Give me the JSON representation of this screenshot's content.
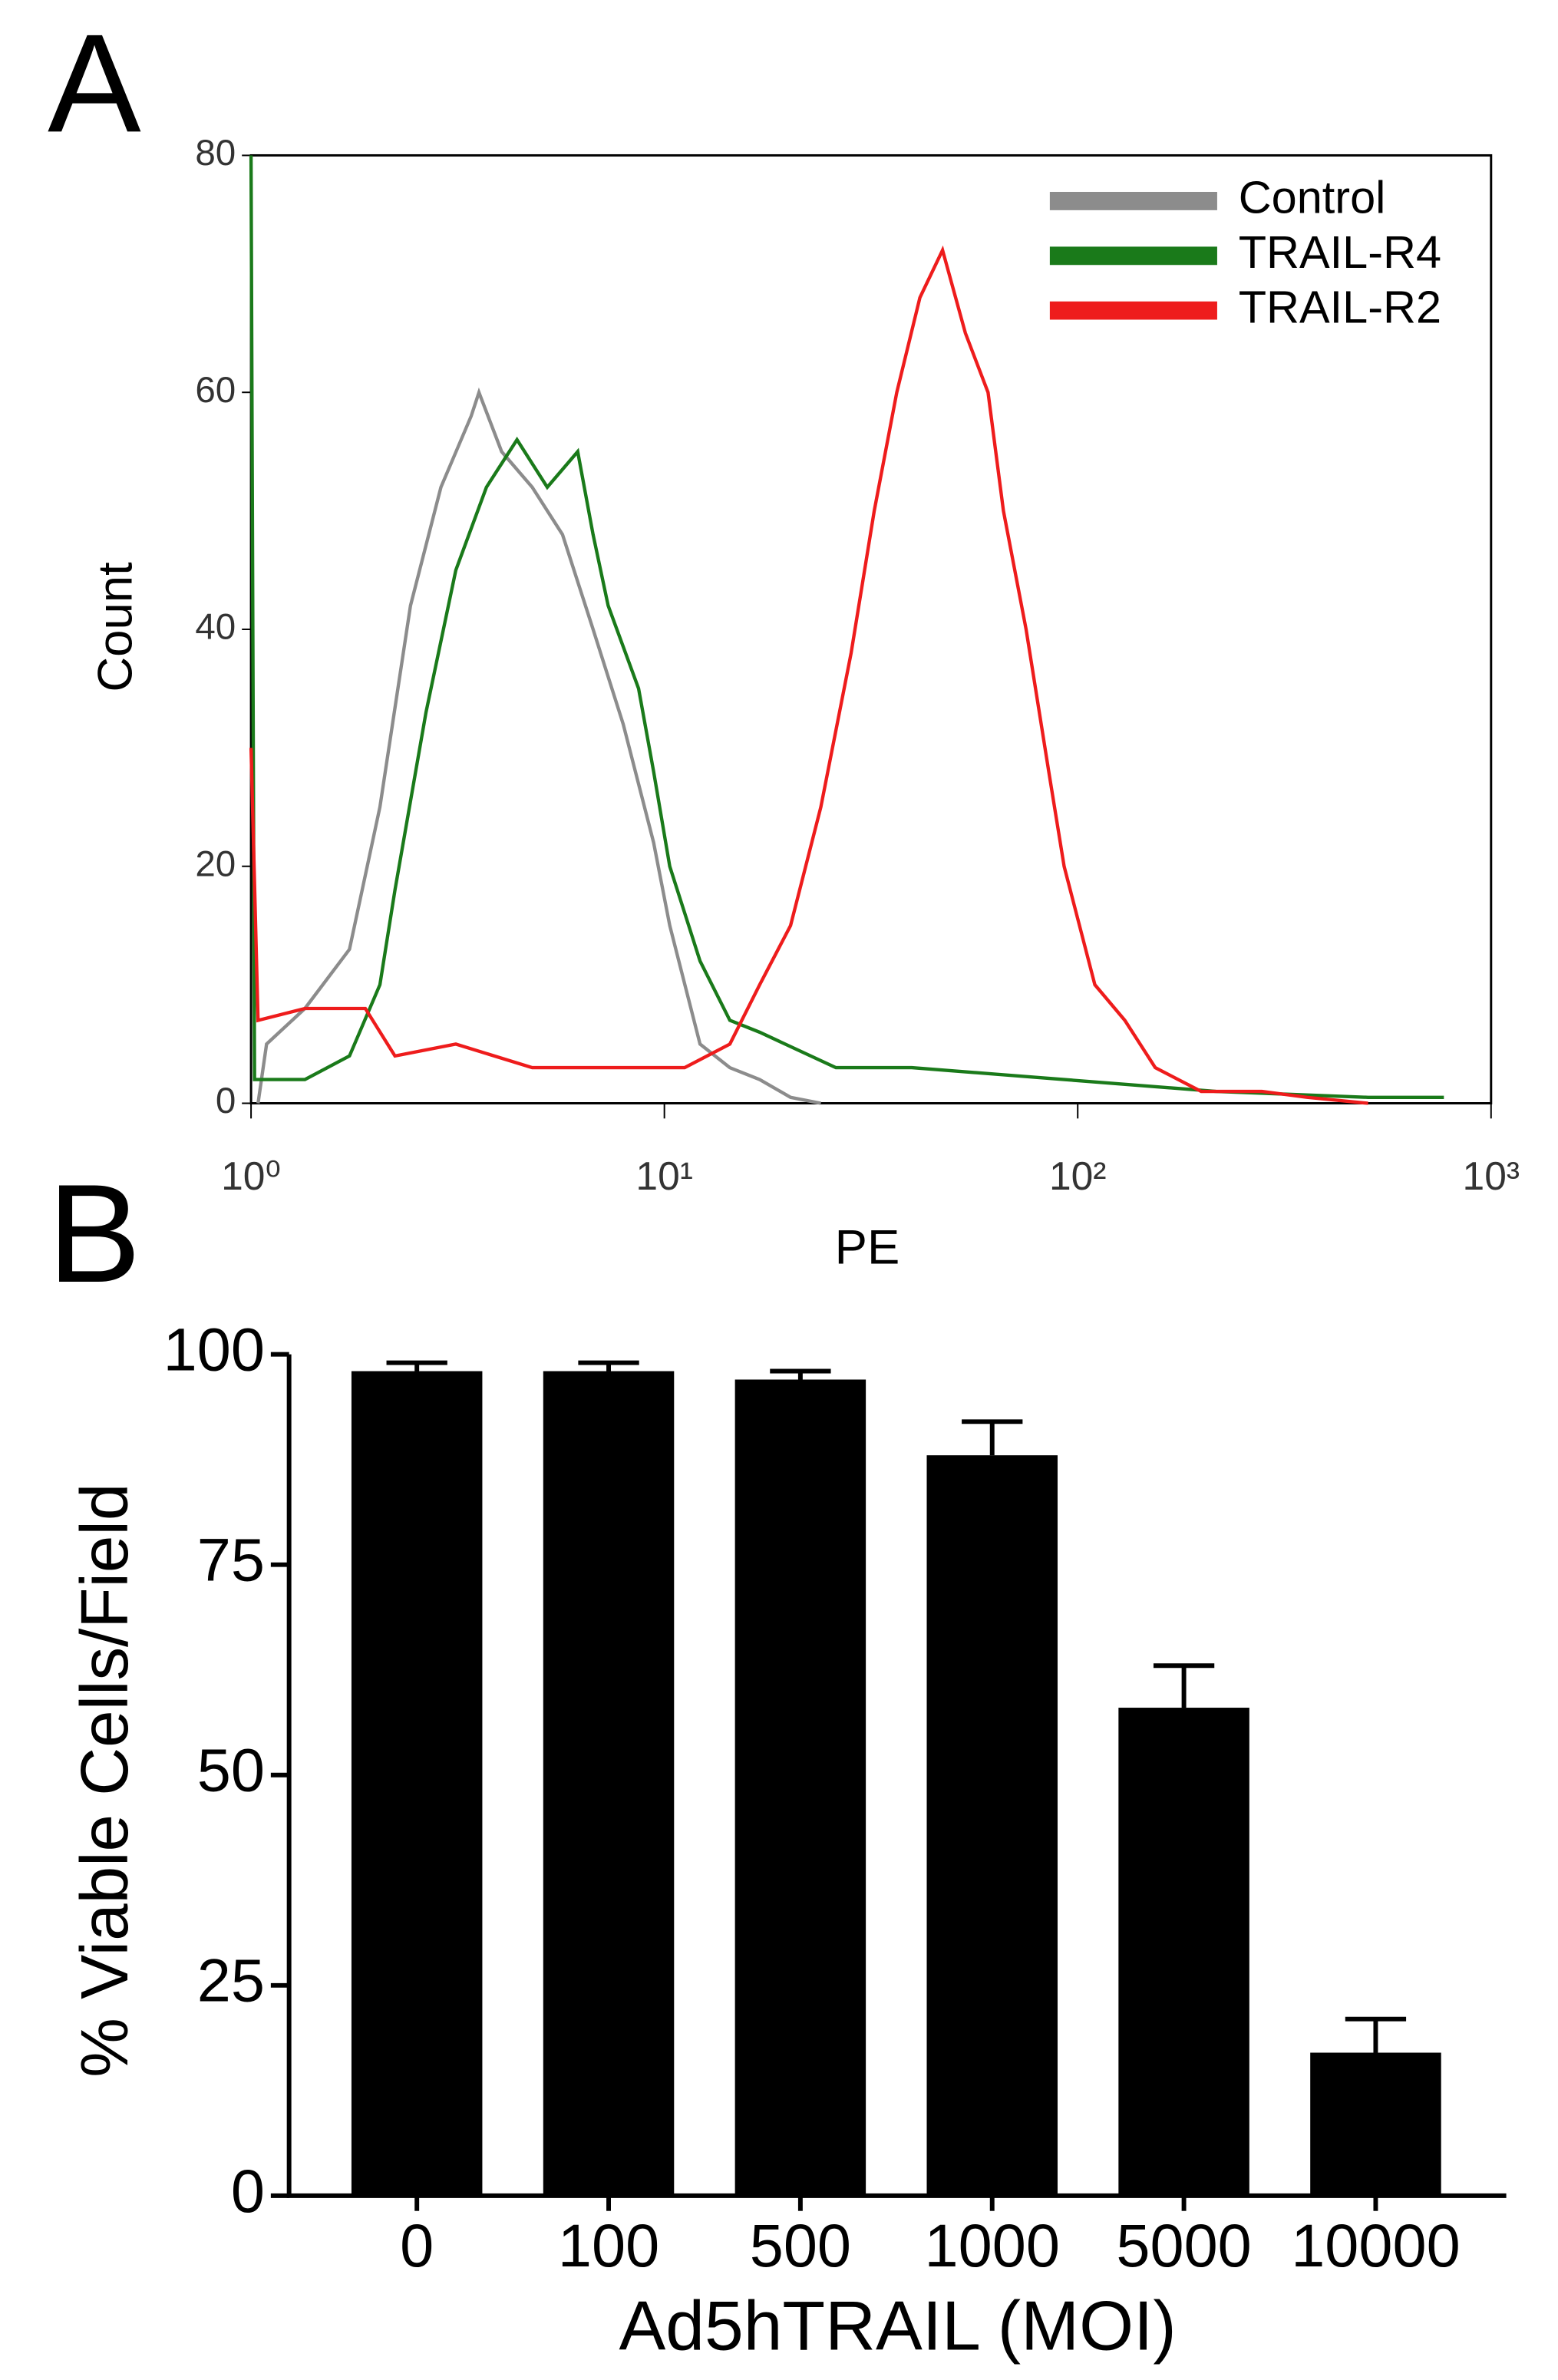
{
  "chart_data": [
    {
      "type": "line",
      "panel": "A",
      "xlabel": "PE",
      "ylabel": "Count",
      "xlog": true,
      "xlim": [
        1,
        1000
      ],
      "xticks": [
        {
          "value": 1,
          "label": "10⁰"
        },
        {
          "value": 10,
          "label": "10¹"
        },
        {
          "value": 100,
          "label": "10²"
        },
        {
          "value": 1000,
          "label": "10³"
        }
      ],
      "ylim": [
        0,
        80
      ],
      "yticks": [
        0,
        20,
        40,
        60,
        80
      ],
      "legend": "upper right",
      "series": [
        {
          "name": "Control",
          "color": "#8c8c8c",
          "x": [
            1.04,
            1.09,
            1.35,
            1.73,
            2.05,
            2.43,
            2.88,
            3.41,
            3.56,
            4.04,
            4.79,
            5.67,
            6.72,
            7.95,
            9.42,
            10.3,
            12.2,
            14.4,
            17.0,
            20.2,
            23.9
          ],
          "values": [
            0,
            5,
            8,
            13,
            25,
            42,
            52,
            58,
            60,
            55,
            52,
            48,
            40,
            32,
            22,
            15,
            5,
            3,
            2,
            0.5,
            0
          ]
        },
        {
          "name": "TRAIL-R4",
          "color": "#1a7a1a",
          "x": [
            1.0,
            1.02,
            1.09,
            1.35,
            1.73,
            2.05,
            2.23,
            2.65,
            3.13,
            3.71,
            4.4,
            5.21,
            6.17,
            6.72,
            7.31,
            8.66,
            9.42,
            10.3,
            12.2,
            14.4,
            17.0,
            26.0,
            39.7,
            92.7,
            216,
            504,
            769
          ],
          "values": [
            80,
            2,
            2,
            2,
            4,
            10,
            18,
            33,
            45,
            52,
            56,
            52,
            55,
            48,
            42,
            35,
            28,
            20,
            12,
            7,
            6,
            3,
            3,
            2,
            1,
            0.5,
            0.5
          ]
        },
        {
          "name": "TRAIL-R2",
          "color": "#ee1c1c",
          "x": [
            1.0,
            1.04,
            1.35,
            1.89,
            2.23,
            3.13,
            4.79,
            7.31,
            11.2,
            14.4,
            17.0,
            20.2,
            23.9,
            28.3,
            32.2,
            36.5,
            41.5,
            47.1,
            53.5,
            60.7,
            66.1,
            75.0,
            85.1,
            92.7,
            110,
            130,
            154,
            199,
            279,
            359,
            504
          ],
          "values": [
            30,
            7,
            8,
            8,
            4,
            5,
            3,
            3,
            3,
            5,
            10,
            15,
            25,
            38,
            50,
            60,
            68,
            72,
            65,
            60,
            50,
            40,
            28,
            20,
            10,
            7,
            3,
            1,
            1,
            0.5,
            0
          ]
        }
      ]
    },
    {
      "type": "bar",
      "panel": "B",
      "xlabel": "Ad5hTRAIL (MOI)",
      "ylabel": "% Viable Cells/Field",
      "categories": [
        "0",
        "100",
        "500",
        "1000",
        "5000",
        "10000"
      ],
      "values": [
        98,
        98,
        97,
        88,
        58,
        17
      ],
      "errors": [
        1,
        1,
        1,
        4,
        5,
        4
      ],
      "color": "#000000",
      "ylim": [
        0,
        100
      ],
      "yticks": [
        0,
        25,
        50,
        75,
        100
      ]
    }
  ]
}
